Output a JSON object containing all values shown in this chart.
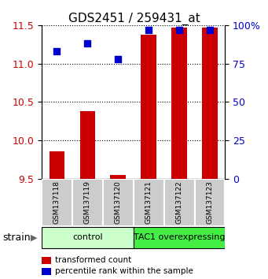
{
  "title": "GDS2451 / 259431_at",
  "samples": [
    "GSM137118",
    "GSM137119",
    "GSM137120",
    "GSM137121",
    "GSM137122",
    "GSM137123"
  ],
  "transformed_counts": [
    9.85,
    10.38,
    9.55,
    11.38,
    11.47,
    11.47
  ],
  "percentile_ranks": [
    83,
    88,
    78,
    97,
    97,
    97
  ],
  "bar_bottom": 9.5,
  "ylim_left": [
    9.5,
    11.5
  ],
  "ylim_right": [
    0,
    100
  ],
  "yticks_left": [
    9.5,
    10.0,
    10.5,
    11.0,
    11.5
  ],
  "yticks_right": [
    0,
    25,
    50,
    75,
    100
  ],
  "bar_color": "#cc0000",
  "dot_color": "#0000cc",
  "groups": [
    {
      "label": "control",
      "indices": [
        0,
        1,
        2
      ],
      "color": "#ccffcc"
    },
    {
      "label": "TAC1 overexpressing",
      "indices": [
        3,
        4,
        5
      ],
      "color": "#44ee44"
    }
  ],
  "legend_bar_label": "transformed count",
  "legend_dot_label": "percentile rank within the sample",
  "tick_label_color_left": "#cc0000",
  "tick_label_color_right": "#0000cc",
  "bar_width": 0.5,
  "sample_box_color": "#cccccc",
  "strain_label": "strain",
  "title_fontsize": 11,
  "tick_fontsize": 9,
  "label_fontsize": 7,
  "group_fontsize": 8
}
